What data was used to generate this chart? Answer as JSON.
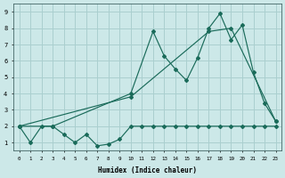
{
  "xlabel": "Humidex (Indice chaleur)",
  "bg_color": "#cce8e8",
  "grid_color": "#aacfcf",
  "line_color": "#1a6b5a",
  "xlim": [
    -0.5,
    23.5
  ],
  "ylim": [
    0.5,
    9.5
  ],
  "xticks": [
    0,
    1,
    2,
    3,
    4,
    5,
    6,
    7,
    8,
    9,
    10,
    11,
    12,
    13,
    14,
    15,
    16,
    17,
    18,
    19,
    20,
    21,
    22,
    23
  ],
  "yticks": [
    1,
    2,
    3,
    4,
    5,
    6,
    7,
    8,
    9
  ],
  "series1_x": [
    0,
    1,
    2,
    3,
    4,
    5,
    6,
    7,
    8,
    9,
    10,
    11,
    12,
    13,
    14,
    15,
    16,
    17,
    18,
    19,
    20,
    21,
    22,
    23
  ],
  "series1_y": [
    2,
    1,
    2,
    2,
    1.5,
    1,
    1.5,
    0.8,
    0.9,
    1.2,
    2,
    2,
    2,
    2,
    2,
    2,
    2,
    2,
    2,
    2,
    2,
    2,
    2,
    2
  ],
  "series2_x": [
    0,
    3,
    10,
    12,
    13,
    14,
    15,
    16,
    17,
    18,
    19,
    20,
    21,
    22,
    23
  ],
  "series2_y": [
    2,
    2,
    4,
    7.8,
    6.3,
    5.5,
    4.8,
    6.2,
    8.0,
    8.9,
    7.3,
    8.2,
    5.3,
    3.4,
    2.3
  ],
  "series3_x": [
    0,
    10,
    17,
    19,
    23
  ],
  "series3_y": [
    2,
    3.8,
    7.8,
    8.0,
    2.3
  ]
}
